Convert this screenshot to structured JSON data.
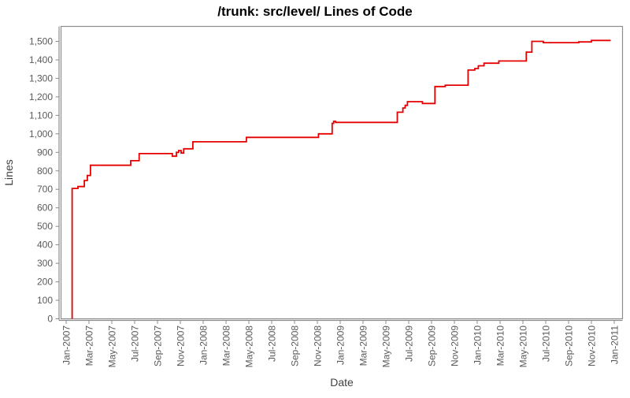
{
  "chart": {
    "title": "/trunk: src/level/ Lines of Code",
    "xlabel": "Date",
    "ylabel": "Lines"
  },
  "chart_data": {
    "type": "line",
    "subtype": "step",
    "title": "/trunk: src/level/ Lines of Code",
    "xlabel": "Date",
    "ylabel": "Lines",
    "legend": "none",
    "grid": false,
    "line_color": "#e60000",
    "axis_color": "#8c8c8c",
    "tick_label_color": "#5a5a5a",
    "ylim": [
      0,
      1580
    ],
    "y_tick_step": 100,
    "y_tick_labels": [
      "0",
      "100",
      "200",
      "300",
      "400",
      "500",
      "600",
      "700",
      "800",
      "900",
      "1,000",
      "1,100",
      "1,200",
      "1,300",
      "1,400",
      "1,500"
    ],
    "x_tick_labels": [
      "Jan-2007",
      "Mar-2007",
      "May-2007",
      "Jul-2007",
      "Sep-2007",
      "Nov-2007",
      "Jan-2008",
      "Mar-2008",
      "May-2008",
      "Jul-2008",
      "Sep-2008",
      "Nov-2008",
      "Jan-2009",
      "Mar-2009",
      "May-2009",
      "Jul-2009",
      "Sep-2009",
      "Nov-2009",
      "Jan-2010",
      "Mar-2010",
      "May-2010",
      "Jul-2010",
      "Sep-2010",
      "Nov-2010",
      "Jan-2011"
    ],
    "series": [
      {
        "name": "Lines of Code",
        "points": [
          [
            "2007-01-17",
            705
          ],
          [
            "2007-02-02",
            715
          ],
          [
            "2007-02-19",
            748
          ],
          [
            "2007-02-27",
            775
          ],
          [
            "2007-03-05",
            830
          ],
          [
            "2007-06-21",
            855
          ],
          [
            "2007-07-13",
            893
          ],
          [
            "2007-10-10",
            879
          ],
          [
            "2007-10-21",
            900
          ],
          [
            "2007-10-27",
            910
          ],
          [
            "2007-11-03",
            896
          ],
          [
            "2007-11-10",
            919
          ],
          [
            "2007-12-04",
            957
          ],
          [
            "2008-04-25",
            981
          ],
          [
            "2008-11-04",
            1000
          ],
          [
            "2008-12-10",
            1057
          ],
          [
            "2008-12-14",
            1068
          ],
          [
            "2008-12-19",
            1062
          ],
          [
            "2009-06-01",
            1117
          ],
          [
            "2009-06-16",
            1140
          ],
          [
            "2009-06-22",
            1154
          ],
          [
            "2009-06-28",
            1174
          ],
          [
            "2009-08-07",
            1164
          ],
          [
            "2009-09-10",
            1256
          ],
          [
            "2009-10-07",
            1263
          ],
          [
            "2009-12-07",
            1345
          ],
          [
            "2009-12-25",
            1353
          ],
          [
            "2010-01-04",
            1368
          ],
          [
            "2010-01-19",
            1382
          ],
          [
            "2010-02-28",
            1394
          ],
          [
            "2010-05-10",
            1442
          ],
          [
            "2010-05-25",
            1500
          ],
          [
            "2010-06-25",
            1493
          ],
          [
            "2010-09-28",
            1497
          ],
          [
            "2010-11-01",
            1505
          ]
        ],
        "line_end_date": "2010-12-22",
        "starts_from_zero": true
      }
    ]
  }
}
